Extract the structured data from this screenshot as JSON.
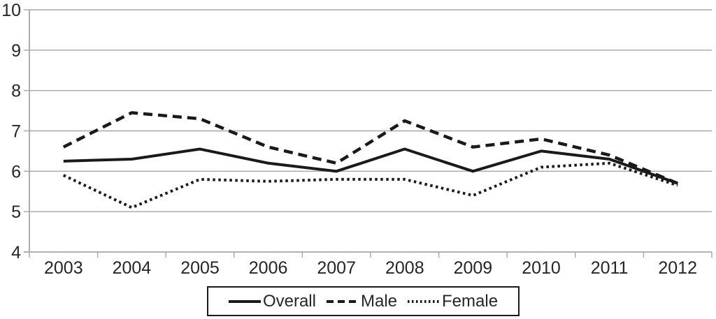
{
  "chart_data": {
    "type": "line",
    "categories": [
      "2003",
      "2004",
      "2005",
      "2006",
      "2007",
      "2008",
      "2009",
      "2010",
      "2011",
      "2012"
    ],
    "series": [
      {
        "name": "Overall",
        "line_style": "solid",
        "values": [
          6.25,
          6.3,
          6.55,
          6.2,
          6.0,
          6.55,
          6.0,
          6.5,
          6.3,
          5.7
        ]
      },
      {
        "name": "Male",
        "line_style": "dashed",
        "values": [
          6.6,
          7.45,
          7.3,
          6.6,
          6.2,
          7.25,
          6.6,
          6.8,
          6.4,
          5.7
        ]
      },
      {
        "name": "Female",
        "line_style": "dotted",
        "values": [
          5.9,
          5.1,
          5.8,
          5.75,
          5.8,
          5.8,
          5.4,
          6.1,
          6.2,
          5.65
        ]
      }
    ],
    "ylim": [
      4,
      10
    ],
    "yticks": [
      4,
      5,
      6,
      7,
      8,
      9,
      10
    ],
    "grid": true,
    "legend_position": "bottom-center",
    "colors": {
      "series": "#1a1a1a",
      "grid": "#a6a6a6",
      "axis": "#a6a6a6",
      "text": "#262626",
      "background": "#ffffff",
      "legend_border": "#1a1a1a"
    }
  }
}
